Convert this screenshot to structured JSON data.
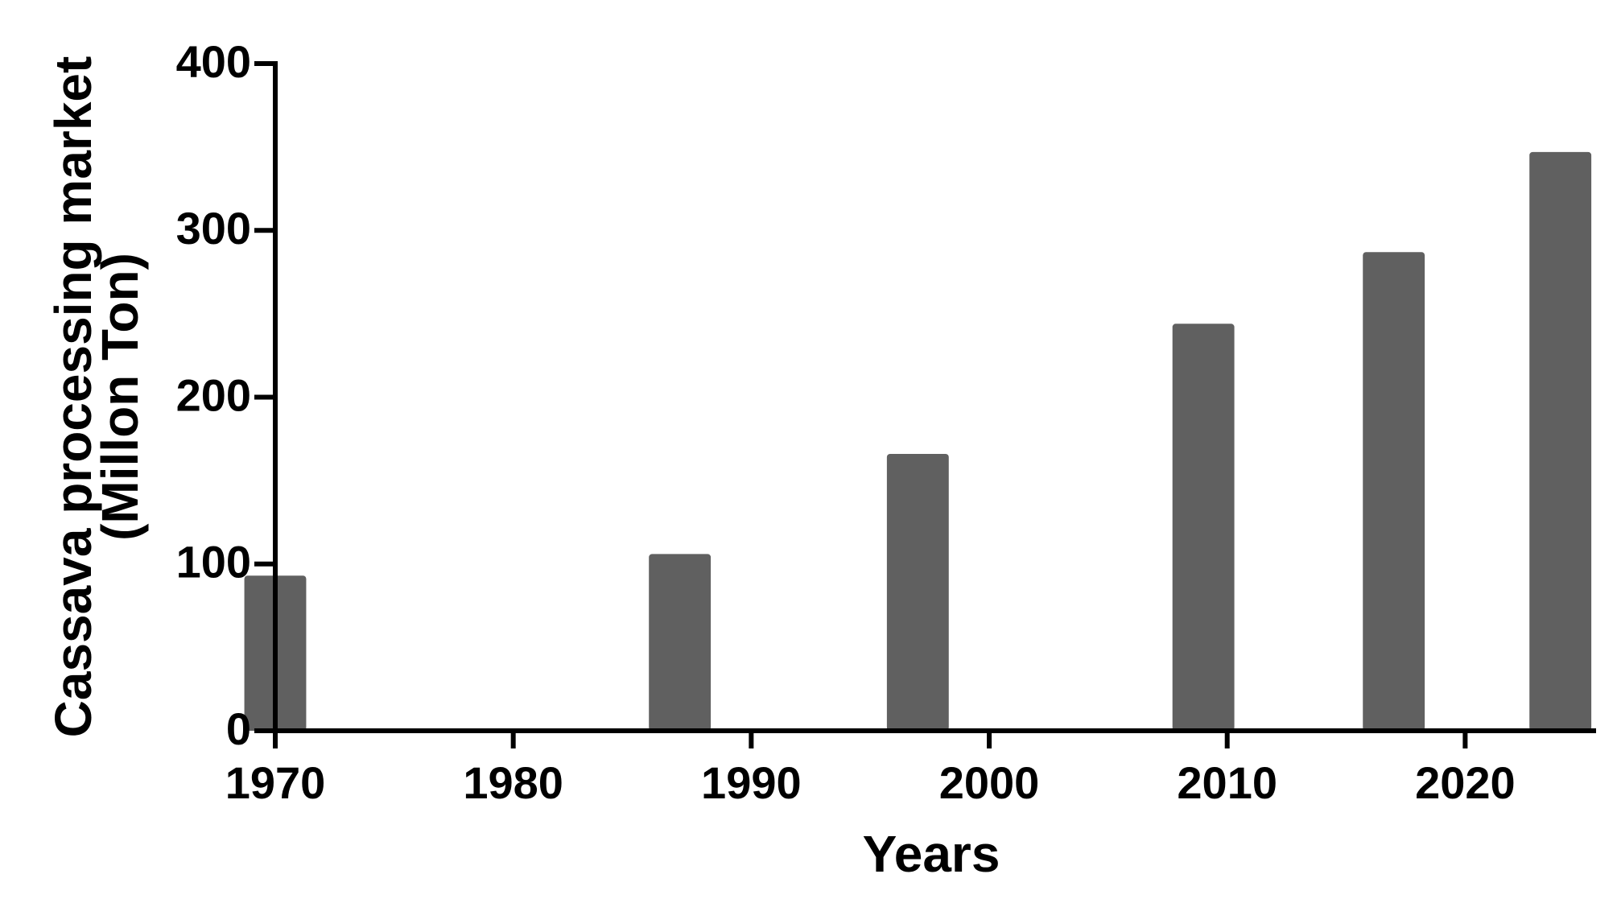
{
  "chart_data": {
    "type": "bar",
    "xlabel": "Years",
    "ylabel": [
      "Cassava processing market",
      "(Millon Ton)"
    ],
    "x": [
      1970,
      1987,
      1997,
      2009,
      2017,
      2024
    ],
    "values": [
      93,
      106,
      166,
      244,
      287,
      347
    ],
    "color": "#606060",
    "xlim": [
      1970,
      2025.5
    ],
    "xticks": [
      1970,
      1980,
      1990,
      2000,
      2010,
      2020
    ],
    "ylim": [
      0,
      400
    ],
    "yticks": [
      0,
      100,
      200,
      300,
      400
    ],
    "grid": false
  }
}
